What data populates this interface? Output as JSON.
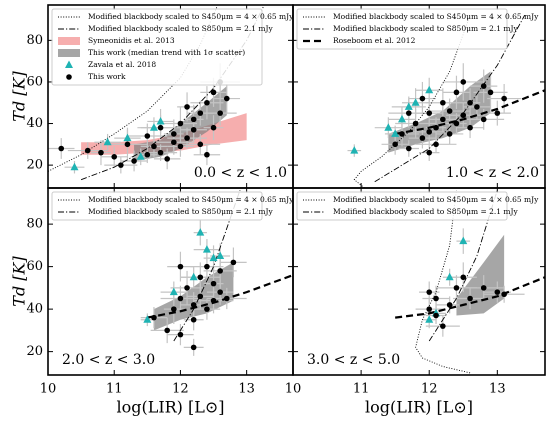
{
  "chart_data": [
    {
      "type": "scatter",
      "xlim": [
        10,
        13.7
      ],
      "ylim": [
        9,
        97
      ],
      "xticks": [
        10,
        11,
        12,
        13
      ],
      "yticks": [
        20,
        40,
        60,
        80
      ],
      "xtick_labels": false,
      "ytick_labels": true,
      "ylabel": "Td [K]",
      "annotation": "0.0 < z < 1.0",
      "annotation_loc": "lower right",
      "legend": "upper left",
      "series": [
        {
          "name": "Modified blackbody scaled to S450μm = 4 × 0.65 mJy",
          "kind": "line",
          "linestyle": "dotted",
          "color": "#000000",
          "x": [
            10.0,
            10.5,
            11.0,
            11.5,
            12.0,
            12.3,
            12.55
          ],
          "y": [
            17,
            25,
            35,
            46,
            62,
            78,
            96
          ]
        },
        {
          "name": "Modified blackbody scaled to S850μm = 2.1 mJy",
          "kind": "line",
          "linestyle": "dashdot",
          "color": "#000000",
          "x": [
            10.5,
            11.0,
            11.5,
            12.0,
            12.5,
            13.0,
            13.25
          ],
          "y": [
            13,
            19,
            28,
            40,
            57,
            80,
            96
          ]
        },
        {
          "name": "Symeonidis et al. 2013",
          "kind": "band",
          "color": "#f28b8b",
          "x": [
            10.5,
            11.0,
            11.5,
            12.0,
            12.5,
            13.0
          ],
          "y_low": [
            25,
            25,
            26,
            27,
            30,
            32
          ],
          "y_high": [
            31,
            31,
            32,
            35,
            40,
            45
          ]
        },
        {
          "name": "This work (median trend with 1σ scatter)",
          "kind": "band",
          "color": "#808080",
          "x": [
            11.3,
            11.7,
            12.0,
            12.4,
            12.7
          ],
          "y_low": [
            22,
            24,
            28,
            36,
            44
          ],
          "y_high": [
            30,
            32,
            40,
            50,
            58
          ]
        },
        {
          "name": "Zavala et al. 2018",
          "kind": "points",
          "marker": "triangle",
          "color": "#1fb3b3",
          "x": [
            10.4,
            10.9,
            11.2,
            11.6,
            11.7,
            11.4
          ],
          "y": [
            19,
            31,
            33,
            38,
            41,
            24
          ],
          "xerr": [
            0.15,
            0.2,
            0.2,
            0.25,
            0.2,
            0.15
          ],
          "yerr": [
            3,
            4,
            5,
            5,
            6,
            4
          ]
        },
        {
          "name": "This work",
          "kind": "points",
          "marker": "circle",
          "color": "#000000",
          "x": [
            10.2,
            10.6,
            10.8,
            11.0,
            11.1,
            11.2,
            11.3,
            11.5,
            11.5,
            11.6,
            11.7,
            11.8,
            11.9,
            11.9,
            12.0,
            12.0,
            12.1,
            12.2,
            12.2,
            12.3,
            12.3,
            12.4,
            12.5,
            12.5,
            12.6,
            12.7,
            12.6,
            12.4,
            11.7,
            12.1
          ],
          "y": [
            28,
            27,
            26,
            24,
            20,
            30,
            22,
            25,
            34,
            29,
            26,
            23,
            31,
            35,
            29,
            40,
            33,
            37,
            42,
            45,
            30,
            50,
            55,
            38,
            60,
            52,
            45,
            25,
            38,
            48
          ],
          "xerr": [
            0.2,
            0.3,
            0.15,
            0.2,
            0.25,
            0.3,
            0.2,
            0.15,
            0.3,
            0.2,
            0.25,
            0.2,
            0.3,
            0.15,
            0.2,
            0.25,
            0.3,
            0.2,
            0.15,
            0.2,
            0.3,
            0.25,
            0.2,
            0.15,
            0.3,
            0.2,
            0.25,
            0.2,
            0.3,
            0.15
          ],
          "yerr": [
            5,
            4,
            6,
            5,
            4,
            7,
            5,
            4,
            6,
            5,
            4,
            5,
            6,
            7,
            5,
            8,
            5,
            6,
            7,
            6,
            5,
            8,
            7,
            6,
            9,
            7,
            6,
            5,
            6,
            7
          ]
        }
      ]
    },
    {
      "type": "scatter",
      "xlim": [
        10,
        13.7
      ],
      "ylim": [
        9,
        97
      ],
      "xticks": [
        10,
        11,
        12,
        13
      ],
      "yticks": [
        20,
        40,
        60,
        80
      ],
      "xtick_labels": false,
      "ytick_labels": false,
      "annotation": "1.0 < z < 2.0",
      "annotation_loc": "lower right",
      "legend": "upper left",
      "series": [
        {
          "name": "Modified blackbody scaled to S450μm = 4 × 0.65 mJy",
          "kind": "line",
          "linestyle": "dotted",
          "color": "#000000",
          "x": [
            11.05,
            10.9,
            11.0,
            11.3,
            11.7,
            12.0,
            12.3,
            12.6
          ],
          "y": [
            9,
            13,
            17,
            24,
            36,
            48,
            65,
            92
          ]
        },
        {
          "name": "Modified blackbody scaled to S850μm = 2.1 mJy",
          "kind": "line",
          "linestyle": "dashdot",
          "color": "#000000",
          "x": [
            11.2,
            11.6,
            12.0,
            12.5,
            13.0,
            13.4
          ],
          "y": [
            12,
            20,
            28,
            45,
            68,
            92
          ]
        },
        {
          "name": "Roseboom et al. 2012",
          "kind": "line",
          "linestyle": "dashed",
          "color": "#000000",
          "x": [
            11.5,
            12.0,
            12.5,
            13.0,
            13.7
          ],
          "y": [
            35,
            38,
            42,
            47,
            56
          ]
        },
        {
          "kind": "band",
          "color": "#808080",
          "x": [
            11.4,
            11.8,
            12.2,
            12.6,
            12.9
          ],
          "y_low": [
            26,
            30,
            33,
            38,
            45
          ],
          "y_high": [
            35,
            40,
            46,
            58,
            65
          ]
        },
        {
          "kind": "points",
          "marker": "triangle",
          "color": "#1fb3b3",
          "x": [
            10.9,
            11.4,
            11.6,
            11.7,
            11.8,
            11.5,
            12.0
          ],
          "y": [
            27,
            38,
            42,
            48,
            50,
            35,
            56
          ],
          "xerr": [
            0.1,
            0.2,
            0.2,
            0.25,
            0.2,
            0.15,
            0.2
          ],
          "yerr": [
            3,
            5,
            6,
            5,
            7,
            4,
            6
          ]
        },
        {
          "kind": "points",
          "marker": "circle",
          "color": "#000000",
          "x": [
            11.5,
            11.6,
            11.7,
            11.8,
            11.9,
            12.0,
            12.0,
            12.1,
            12.1,
            12.2,
            12.2,
            12.3,
            12.3,
            12.4,
            12.4,
            12.5,
            12.5,
            12.6,
            12.6,
            12.7,
            12.8,
            12.9,
            13.0,
            12.0,
            11.7,
            12.8,
            13.1,
            11.9
          ],
          "y": [
            30,
            35,
            28,
            40,
            33,
            36,
            45,
            38,
            30,
            42,
            50,
            35,
            46,
            40,
            55,
            44,
            60,
            38,
            50,
            48,
            42,
            55,
            45,
            26,
            45,
            58,
            52,
            52
          ],
          "xerr": [
            0.2,
            0.25,
            0.15,
            0.3,
            0.2,
            0.25,
            0.2,
            0.15,
            0.3,
            0.2,
            0.25,
            0.2,
            0.3,
            0.15,
            0.2,
            0.25,
            0.3,
            0.2,
            0.15,
            0.2,
            0.3,
            0.25,
            0.2,
            0.15,
            0.3,
            0.2,
            0.25,
            0.2
          ],
          "yerr": [
            5,
            6,
            4,
            7,
            5,
            6,
            8,
            5,
            4,
            6,
            7,
            5,
            6,
            5,
            8,
            6,
            9,
            5,
            7,
            6,
            5,
            8,
            6,
            4,
            7,
            8,
            7,
            8
          ]
        }
      ]
    },
    {
      "type": "scatter",
      "xlim": [
        10,
        13.7
      ],
      "ylim": [
        9,
        97
      ],
      "xticks": [
        10,
        11,
        12,
        13
      ],
      "yticks": [
        20,
        40,
        60,
        80
      ],
      "xtick_labels": true,
      "ytick_labels": true,
      "ylabel": "Td [K]",
      "xlabel": "log(LIR) [L⊙]",
      "annotation": "2.0 < z < 3.0",
      "annotation_loc": "lower left",
      "legend": "upper left",
      "series": [
        {
          "name": "Modified blackbody scaled to S450μm = 4 × 0.65 mJy",
          "kind": "line",
          "linestyle": "dotted",
          "color": "#000000",
          "x": [],
          "y": []
        },
        {
          "name": "Modified blackbody scaled to S850μm = 2.1 mJy",
          "kind": "line",
          "linestyle": "dashdot",
          "color": "#000000",
          "x": [
            11.9,
            12.2,
            12.5,
            12.9
          ],
          "y": [
            25,
            40,
            60,
            96
          ]
        },
        {
          "kind": "line",
          "linestyle": "dashed",
          "color": "#000000",
          "x": [
            11.5,
            12.0,
            12.5,
            13.0,
            13.7
          ],
          "y": [
            36,
            39,
            43,
            48,
            56
          ]
        },
        {
          "kind": "band",
          "color": "#808080",
          "x": [
            11.6,
            12.0,
            12.4,
            12.8
          ],
          "y_low": [
            30,
            35,
            38,
            44
          ],
          "y_high": [
            40,
            46,
            55,
            62
          ]
        },
        {
          "kind": "points",
          "marker": "triangle",
          "color": "#1fb3b3",
          "x": [
            11.5,
            11.9,
            12.3,
            12.4,
            12.6,
            12.2,
            12.5
          ],
          "y": [
            35,
            48,
            76,
            68,
            65,
            55,
            64
          ],
          "xerr": [
            0.1,
            0.2,
            0.1,
            0.2,
            0.15,
            0.2,
            0.15
          ],
          "yerr": [
            3,
            5,
            6,
            5,
            6,
            5,
            6
          ]
        },
        {
          "kind": "points",
          "marker": "circle",
          "color": "#000000",
          "x": [
            11.6,
            11.8,
            11.9,
            12.0,
            12.0,
            12.1,
            12.2,
            12.2,
            12.3,
            12.3,
            12.4,
            12.4,
            12.5,
            12.5,
            12.6,
            12.6,
            12.7,
            12.8,
            12.2,
            12.0
          ],
          "y": [
            36,
            30,
            40,
            45,
            28,
            50,
            42,
            35,
            55,
            46,
            60,
            40,
            44,
            52,
            48,
            58,
            45,
            62,
            22,
            60
          ],
          "xerr": [
            0.2,
            0.25,
            0.15,
            0.3,
            0.2,
            0.25,
            0.2,
            0.15,
            0.3,
            0.2,
            0.25,
            0.2,
            0.3,
            0.15,
            0.2,
            0.25,
            0.3,
            0.2,
            0.15,
            0.2
          ],
          "yerr": [
            5,
            6,
            7,
            6,
            5,
            8,
            6,
            5,
            7,
            6,
            8,
            5,
            6,
            7,
            6,
            8,
            5,
            7,
            4,
            7
          ]
        }
      ]
    },
    {
      "type": "scatter",
      "xlim": [
        10,
        13.7
      ],
      "ylim": [
        9,
        97
      ],
      "xticks": [
        10,
        11,
        12,
        13
      ],
      "yticks": [
        20,
        40,
        60,
        80
      ],
      "xtick_labels": true,
      "ytick_labels": false,
      "xlabel": "log(LIR) [L⊙]",
      "annotation": "3.0 < z < 5.0",
      "annotation_loc": "lower left",
      "legend": "upper left",
      "series": [
        {
          "name": "Modified blackbody scaled to S450μm = 4 × 0.65 mJy",
          "kind": "line",
          "linestyle": "dotted",
          "color": "#000000",
          "x": [
            12.6,
            12.2,
            11.9,
            11.8,
            11.9,
            12.1,
            12.3,
            12.4
          ],
          "y": [
            10,
            13,
            17,
            22,
            35,
            48,
            70,
            96
          ]
        },
        {
          "name": "Modified blackbody scaled to S850μm = 2.1 mJy",
          "kind": "line",
          "linestyle": "dashdot",
          "color": "#000000",
          "x": [
            12.0,
            12.4,
            12.7,
            13.0
          ],
          "y": [
            25,
            45,
            65,
            96
          ]
        },
        {
          "kind": "line",
          "linestyle": "dashed",
          "color": "#000000",
          "x": [
            11.5,
            12.0,
            12.5,
            13.0,
            13.7
          ],
          "y": [
            36,
            38,
            42,
            46,
            55
          ]
        },
        {
          "kind": "band",
          "color": "#808080",
          "x": [
            12.4,
            12.8,
            13.1
          ],
          "y_low": [
            37,
            38,
            45
          ],
          "y_high": [
            45,
            62,
            75
          ]
        },
        {
          "kind": "points",
          "marker": "triangle",
          "color": "#1fb3b3",
          "x": [
            12.0,
            12.1,
            12.3,
            12.5
          ],
          "y": [
            35,
            38,
            55,
            72
          ],
          "xerr": [
            0.1,
            0.15,
            0.1,
            0.1
          ],
          "yerr": [
            4,
            5,
            4,
            6
          ]
        },
        {
          "kind": "points",
          "marker": "circle",
          "color": "#000000",
          "x": [
            12.0,
            12.1,
            12.1,
            12.2,
            12.3,
            12.4,
            12.5,
            12.6,
            12.8,
            13.0,
            13.1,
            12.0
          ],
          "y": [
            40,
            37,
            45,
            32,
            42,
            50,
            55,
            45,
            50,
            48,
            47,
            48
          ],
          "xerr": [
            0.2,
            0.15,
            0.2,
            0.25,
            0.2,
            0.3,
            0.2,
            0.25,
            0.3,
            0.2,
            0.3,
            0.15
          ],
          "yerr": [
            5,
            4,
            6,
            5,
            4,
            6,
            7,
            5,
            6,
            5,
            4,
            5
          ]
        }
      ]
    }
  ]
}
